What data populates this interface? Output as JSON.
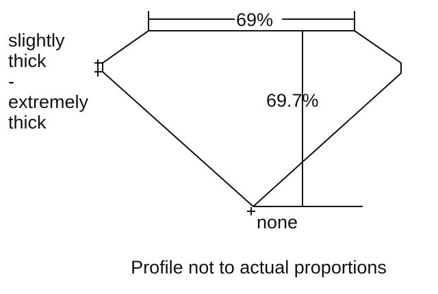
{
  "table_percentage": "69%",
  "total_depth": "69.7%",
  "culet": "none",
  "girdle_thickness": [
    "slightly",
    "thick",
    "-",
    "extremely",
    "thick"
  ],
  "caption": "Profile not to actual proportions"
}
